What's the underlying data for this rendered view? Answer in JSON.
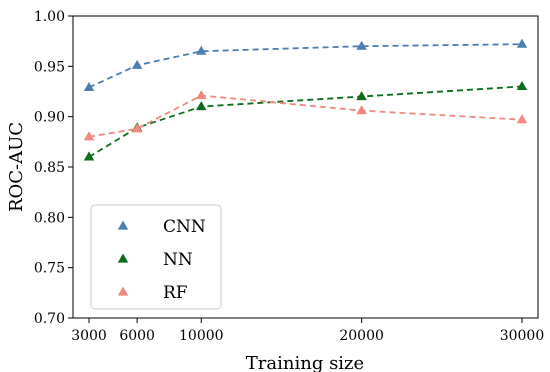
{
  "chart_data": {
    "type": "line",
    "x": [
      3000,
      6000,
      10000,
      20000,
      30000
    ],
    "xlim": [
      2000,
      31000
    ],
    "ylim": [
      0.7,
      1.0
    ],
    "x_ticks": [
      3000,
      6000,
      10000,
      20000,
      30000
    ],
    "y_ticks": [
      0.7,
      0.75,
      0.8,
      0.85,
      0.9,
      0.95,
      1.0
    ],
    "x_tick_labels": [
      "3000",
      "6000",
      "10000",
      "20000",
      "30000"
    ],
    "y_tick_labels": [
      "0.70",
      "0.75",
      "0.80",
      "0.85",
      "0.90",
      "0.95",
      "1.00"
    ],
    "xlabel": "Training size",
    "ylabel": "ROC-AUC",
    "grid": false,
    "legend_position": "bottom-left",
    "marker": "triangle",
    "line_style": "dashed",
    "series": [
      {
        "name": "CNN",
        "color": "#4a7fb0",
        "values": [
          0.929,
          0.951,
          0.965,
          0.97,
          0.972
        ]
      },
      {
        "name": "NN",
        "color": "#0b6e1a",
        "values": [
          0.86,
          0.889,
          0.91,
          0.92,
          0.93
        ]
      },
      {
        "name": "RF",
        "color": "#f08a7e",
        "values": [
          0.88,
          0.888,
          0.921,
          0.906,
          0.897
        ]
      }
    ]
  }
}
